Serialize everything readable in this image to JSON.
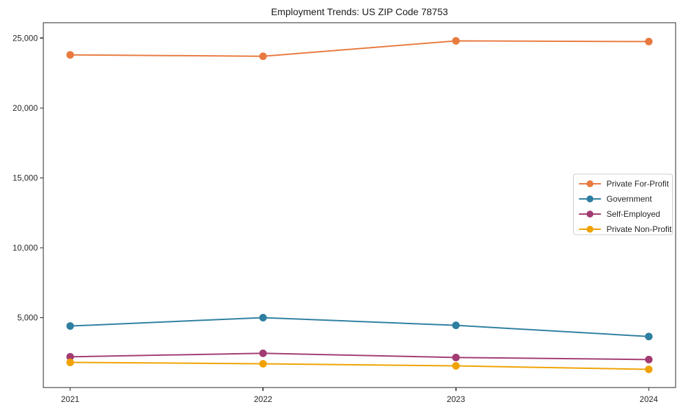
{
  "chart_data": {
    "type": "line",
    "title": "Employment Trends: US ZIP Code 78753",
    "categories": [
      "2021",
      "2022",
      "2023",
      "2024"
    ],
    "series": [
      {
        "name": "Private For-Profit",
        "color": "#E87A3F",
        "values": [
          23800,
          23700,
          24800,
          24750
        ]
      },
      {
        "name": "Government",
        "color": "#2E7FA0",
        "values": [
          4400,
          5000,
          4450,
          3650
        ]
      },
      {
        "name": "Self-Employed",
        "color": "#A23B72",
        "values": [
          2200,
          2450,
          2150,
          2000
        ]
      },
      {
        "name": "Private Non-Profit",
        "color": "#F0A202",
        "values": [
          1800,
          1700,
          1550,
          1300
        ]
      }
    ],
    "xlabel": "",
    "ylabel": "",
    "ylim": [
      0,
      26100
    ],
    "yticks": [
      5000,
      10000,
      15000,
      20000,
      25000
    ],
    "grid": false,
    "marker": "circle",
    "legend_position": "center right",
    "axis_color": "#262626",
    "text_color": "#262626",
    "legend_border_color": "#cccccc",
    "background_color": "#ffffff"
  }
}
